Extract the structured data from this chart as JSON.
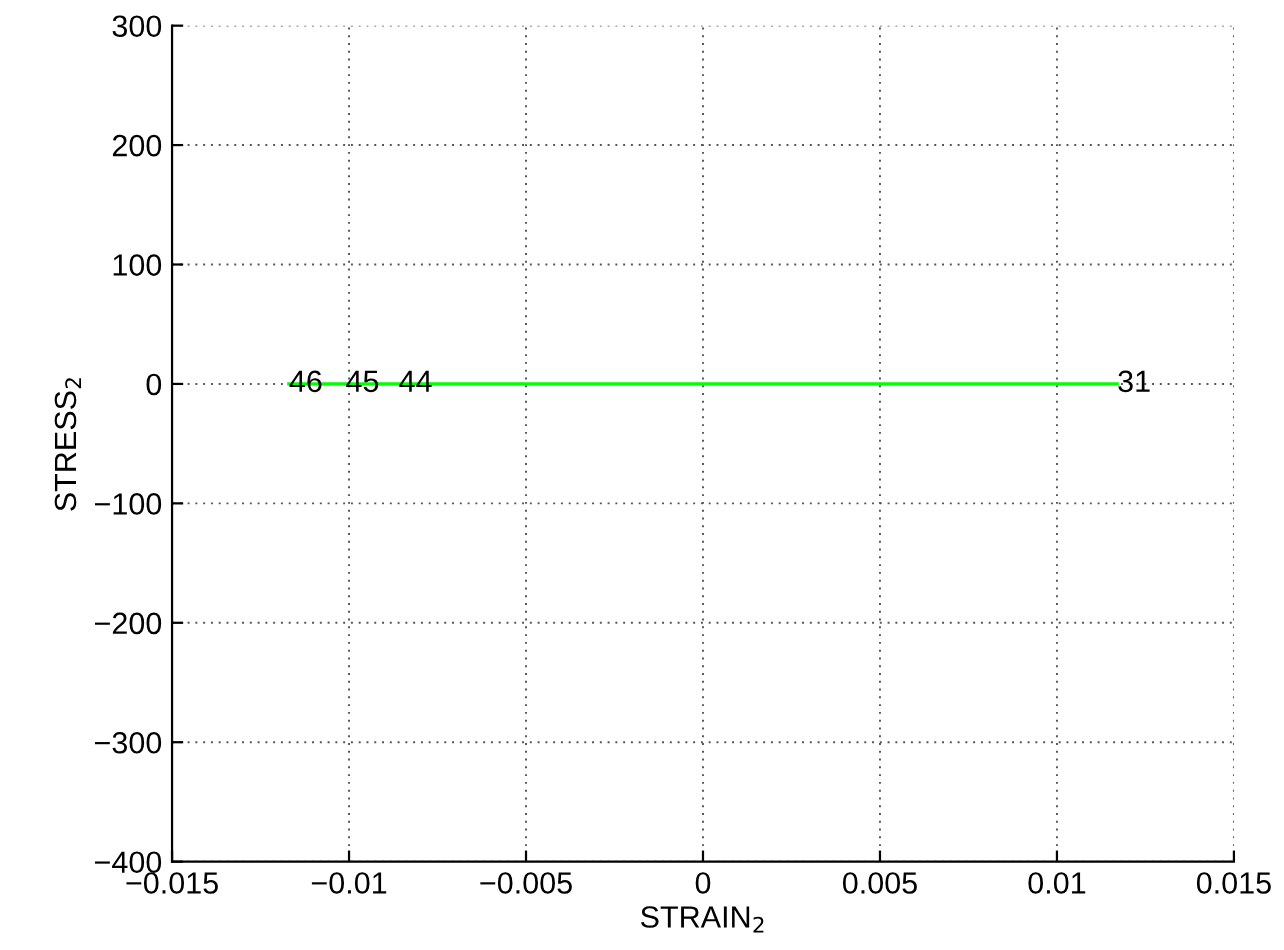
{
  "chart_data": {
    "type": "line",
    "xlabel": "STRAIN$_{2}$",
    "ylabel": "STRESS$_{2}$",
    "series": [
      {
        "color": "#00ff00",
        "x": [
          -0.0117,
          0.0117
        ],
        "values": [
          0,
          0
        ]
      }
    ],
    "xlim": [
      -0.015,
      0.015
    ],
    "xticks": [
      {
        "value": -0.015,
        "label": "−0.015"
      },
      {
        "value": -0.01,
        "label": "−0.01"
      },
      {
        "value": -0.005,
        "label": "−0.005"
      },
      0,
      0.005,
      0.01,
      0.015
    ],
    "ylim": [
      -400,
      300
    ],
    "yticks": [
      {
        "value": -400,
        "label": "−400"
      },
      {
        "value": -300,
        "label": "−300"
      },
      {
        "value": -200,
        "label": "−200"
      },
      {
        "value": -100,
        "label": "−100"
      },
      0,
      100,
      200,
      300
    ],
    "annotations": [
      {
        "text": "46",
        "x": -0.0117,
        "y": 0
      },
      {
        "text": "45",
        "x": -0.0101,
        "y": 0
      },
      {
        "text": "44",
        "x": -0.0086,
        "y": 0
      },
      {
        "text": "31",
        "x": 0.0117,
        "y": 0
      }
    ],
    "grid": true,
    "marker": "none",
    "line_style": "solid"
  }
}
